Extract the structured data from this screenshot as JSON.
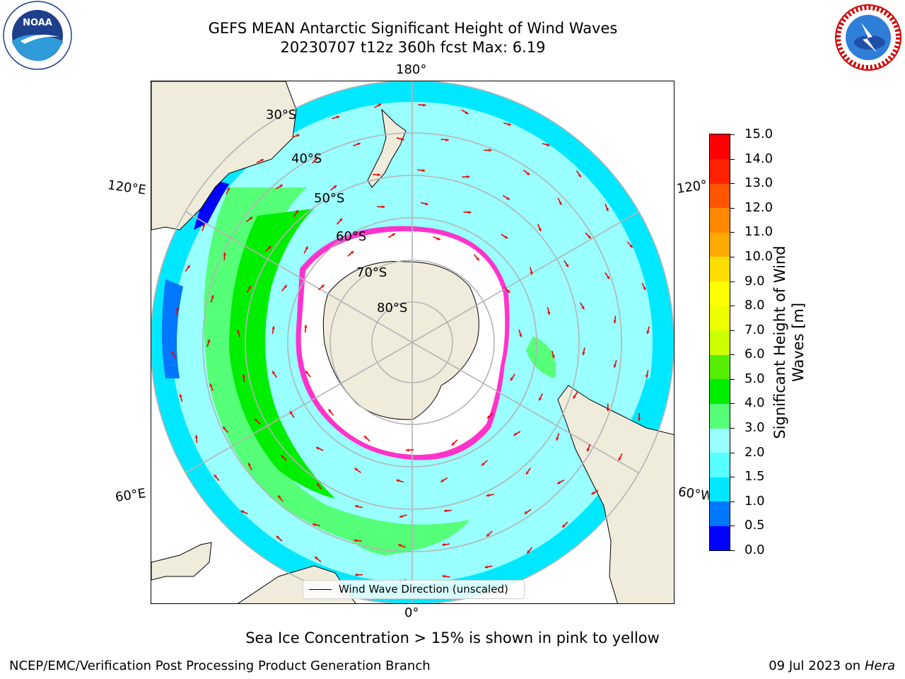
{
  "header": {
    "title_line1": "GEFS MEAN Antarctic Significant Height of Wind Waves",
    "title_line2": "20230707 t12z 360h fcst   Max: 6.19"
  },
  "logos": {
    "left": {
      "text": "NOAA",
      "ring_text": "NATIONAL OCEANIC AND ATMOSPHERIC ADMINISTRATION · U.S. DEPARTMENT OF COMMERCE"
    },
    "right": {
      "ring_text": "NATIONAL WEATHER SERVICE"
    }
  },
  "map": {
    "longitude_labels": {
      "top": "180°",
      "bottom": "0°",
      "upper_left": "120°E",
      "lower_left": "60°E",
      "upper_right": "120°W",
      "lower_right": "60°W"
    },
    "latitude_labels": [
      "30°S",
      "40°S",
      "50°S",
      "60°S",
      "70°S",
      "80°S"
    ],
    "legend": {
      "label": "Wind Wave Direction (unscaled)"
    },
    "colors": {
      "land": "#efecdc",
      "grid": "#b4b4b4",
      "arrow": "#ee0000",
      "sea_ice": "#ff33cc"
    }
  },
  "colorbar": {
    "label": "Significant Height of Wind Waves [m]",
    "label_line1": "Significant Height of Wind",
    "label_line2": "Waves [m]",
    "ticks": [
      "0.0",
      "0.5",
      "1.0",
      "1.5",
      "2.0",
      "3.0",
      "4.0",
      "5.0",
      "6.0",
      "7.0",
      "8.0",
      "9.0",
      "10.0",
      "11.0",
      "12.0",
      "13.0",
      "14.0",
      "15.0"
    ],
    "colors": [
      "#0000ff",
      "#0077ff",
      "#00e8ff",
      "#55ffff",
      "#99ffff",
      "#55ff77",
      "#00ee00",
      "#55ee00",
      "#ccff00",
      "#eeff00",
      "#ffff00",
      "#ffdd00",
      "#ffaa00",
      "#ff8800",
      "#ff5500",
      "#ff2200",
      "#ff0000"
    ]
  },
  "footer": {
    "subtitle": "Sea Ice Concentration > 15% is shown in pink to yellow",
    "left": "NCEP/EMC/Verification Post Processing Product Generation Branch",
    "right_date": "09 Jul 2023 on",
    "right_host": "Hera"
  }
}
